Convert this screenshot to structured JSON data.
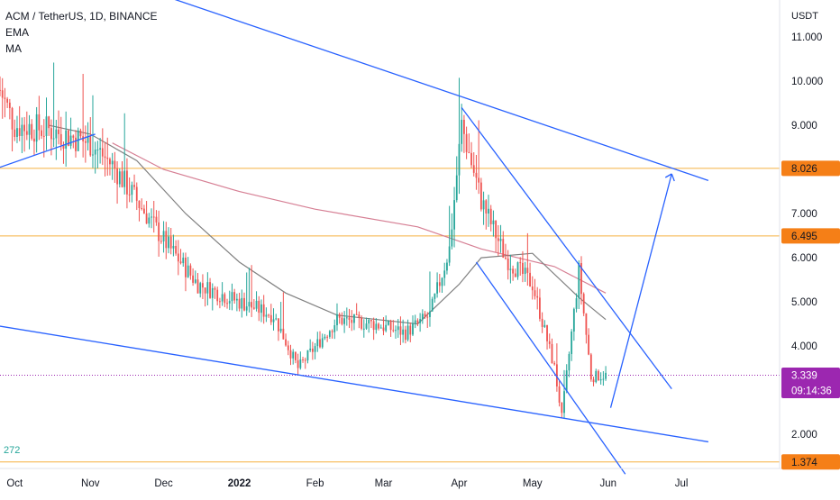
{
  "header": {
    "symbol_line": "ACM / TetherUS, 1D, BINANCE",
    "indicator_1": "EMA",
    "indicator_2": "MA"
  },
  "price_axis": {
    "unit": "USDT",
    "ticks": [
      "11.000",
      "10.000",
      "9.000",
      "7.000",
      "6.000",
      "5.000",
      "4.000",
      "2.000"
    ],
    "badges": [
      {
        "label": "8.026",
        "value": 8.026,
        "color": "#f57f17",
        "kind": "level"
      },
      {
        "label": "6.495",
        "value": 6.495,
        "color": "#f57f17",
        "kind": "level"
      },
      {
        "label": "3.339",
        "value": 3.339,
        "color": "#9c27b0",
        "kind": "last"
      },
      {
        "label": "1.374",
        "value": 1.374,
        "color": "#f57f17",
        "kind": "level"
      }
    ],
    "countdown": "09:14:36"
  },
  "time_axis": {
    "labels": [
      "Oct",
      "Nov",
      "Dec",
      "2022",
      "Feb",
      "Mar",
      "Apr",
      "May",
      "Jun",
      "Jul"
    ]
  },
  "volume_label": "272",
  "colors": {
    "up": "#26a69a",
    "down": "#ef5350",
    "trendline": "#2962ff",
    "ema": "#808080",
    "ma": "#d67f94",
    "level": "#f5b041",
    "last_price": "#9c27b0"
  },
  "chart_data": {
    "type": "candlestick",
    "symbol": "ACM / TetherUS",
    "interval": "1D",
    "exchange": "BINANCE",
    "ylabel": "USDT",
    "ylim": [
      1.3,
      11.5
    ],
    "x": [
      "Oct",
      "Nov",
      "Dec",
      "2022",
      "Feb",
      "Mar",
      "Apr",
      "May",
      "Jun",
      "Jul"
    ],
    "close_series": [
      {
        "date": "2021-09-25",
        "close": 9.8
      },
      {
        "date": "2021-10-01",
        "close": 9.0
      },
      {
        "date": "2021-10-15",
        "close": 8.9
      },
      {
        "date": "2021-11-01",
        "close": 8.6
      },
      {
        "date": "2021-11-10",
        "close": 8.1
      },
      {
        "date": "2021-11-20",
        "close": 7.3
      },
      {
        "date": "2021-12-01",
        "close": 6.4
      },
      {
        "date": "2021-12-15",
        "close": 5.4
      },
      {
        "date": "2022-01-01",
        "close": 5.0
      },
      {
        "date": "2022-01-15",
        "close": 4.7
      },
      {
        "date": "2022-01-25",
        "close": 3.5
      },
      {
        "date": "2022-02-10",
        "close": 4.6
      },
      {
        "date": "2022-02-25",
        "close": 4.5
      },
      {
        "date": "2022-03-10",
        "close": 4.3
      },
      {
        "date": "2022-03-20",
        "close": 4.7
      },
      {
        "date": "2022-03-28",
        "close": 6.2
      },
      {
        "date": "2022-04-02",
        "close": 9.0
      },
      {
        "date": "2022-04-10",
        "close": 7.3
      },
      {
        "date": "2022-04-20",
        "close": 6.0
      },
      {
        "date": "2022-05-01",
        "close": 5.4
      },
      {
        "date": "2022-05-10",
        "close": 3.5
      },
      {
        "date": "2022-05-13",
        "close": 2.4
      },
      {
        "date": "2022-05-20",
        "close": 5.7
      },
      {
        "date": "2022-05-25",
        "close": 3.3
      },
      {
        "date": "2022-05-31",
        "close": 3.339
      }
    ],
    "ema_series": [
      {
        "date": "2021-10-15",
        "value": 9.0
      },
      {
        "date": "2021-11-01",
        "value": 8.8
      },
      {
        "date": "2021-11-20",
        "value": 8.2
      },
      {
        "date": "2021-12-10",
        "value": 7.0
      },
      {
        "date": "2022-01-01",
        "value": 5.9
      },
      {
        "date": "2022-01-20",
        "value": 5.2
      },
      {
        "date": "2022-02-10",
        "value": 4.7
      },
      {
        "date": "2022-03-15",
        "value": 4.5
      },
      {
        "date": "2022-04-01",
        "value": 5.4
      },
      {
        "date": "2022-04-10",
        "value": 6.0
      },
      {
        "date": "2022-05-01",
        "value": 6.1
      },
      {
        "date": "2022-05-20",
        "value": 5.1
      },
      {
        "date": "2022-05-31",
        "value": 4.6
      }
    ],
    "ma_series": [
      {
        "date": "2021-11-10",
        "value": 8.6
      },
      {
        "date": "2021-12-01",
        "value": 8.0
      },
      {
        "date": "2022-01-01",
        "value": 7.5
      },
      {
        "date": "2022-02-01",
        "value": 7.1
      },
      {
        "date": "2022-03-15",
        "value": 6.7
      },
      {
        "date": "2022-04-10",
        "value": 6.2
      },
      {
        "date": "2022-05-10",
        "value": 5.8
      },
      {
        "date": "2022-05-31",
        "value": 5.2
      }
    ],
    "horizontal_levels": [
      8.026,
      6.495,
      3.339,
      1.374
    ],
    "trendlines": [
      {
        "from": {
          "date": "2021-09-25",
          "value": 8.05
        },
        "to": {
          "date": "2021-11-03",
          "value": 8.8
        }
      },
      {
        "from": {
          "date": "2021-09-25",
          "value": 4.45
        },
        "to": {
          "date": "2022-07-12",
          "value": 1.83
        }
      },
      {
        "from": {
          "date": "2021-12-03",
          "value": 11.9
        },
        "to": {
          "date": "2022-07-12",
          "value": 7.75
        }
      },
      {
        "from": {
          "date": "2022-04-02",
          "value": 9.4
        },
        "to": {
          "date": "2022-06-27",
          "value": 3.03
        }
      },
      {
        "from": {
          "date": "2022-04-08",
          "value": 5.9
        },
        "to": {
          "date": "2022-06-08",
          "value": 1.1
        }
      },
      {
        "from": {
          "date": "2022-06-02",
          "value": 2.6
        },
        "to": {
          "date": "2022-06-27",
          "value": 7.9
        }
      }
    ]
  }
}
